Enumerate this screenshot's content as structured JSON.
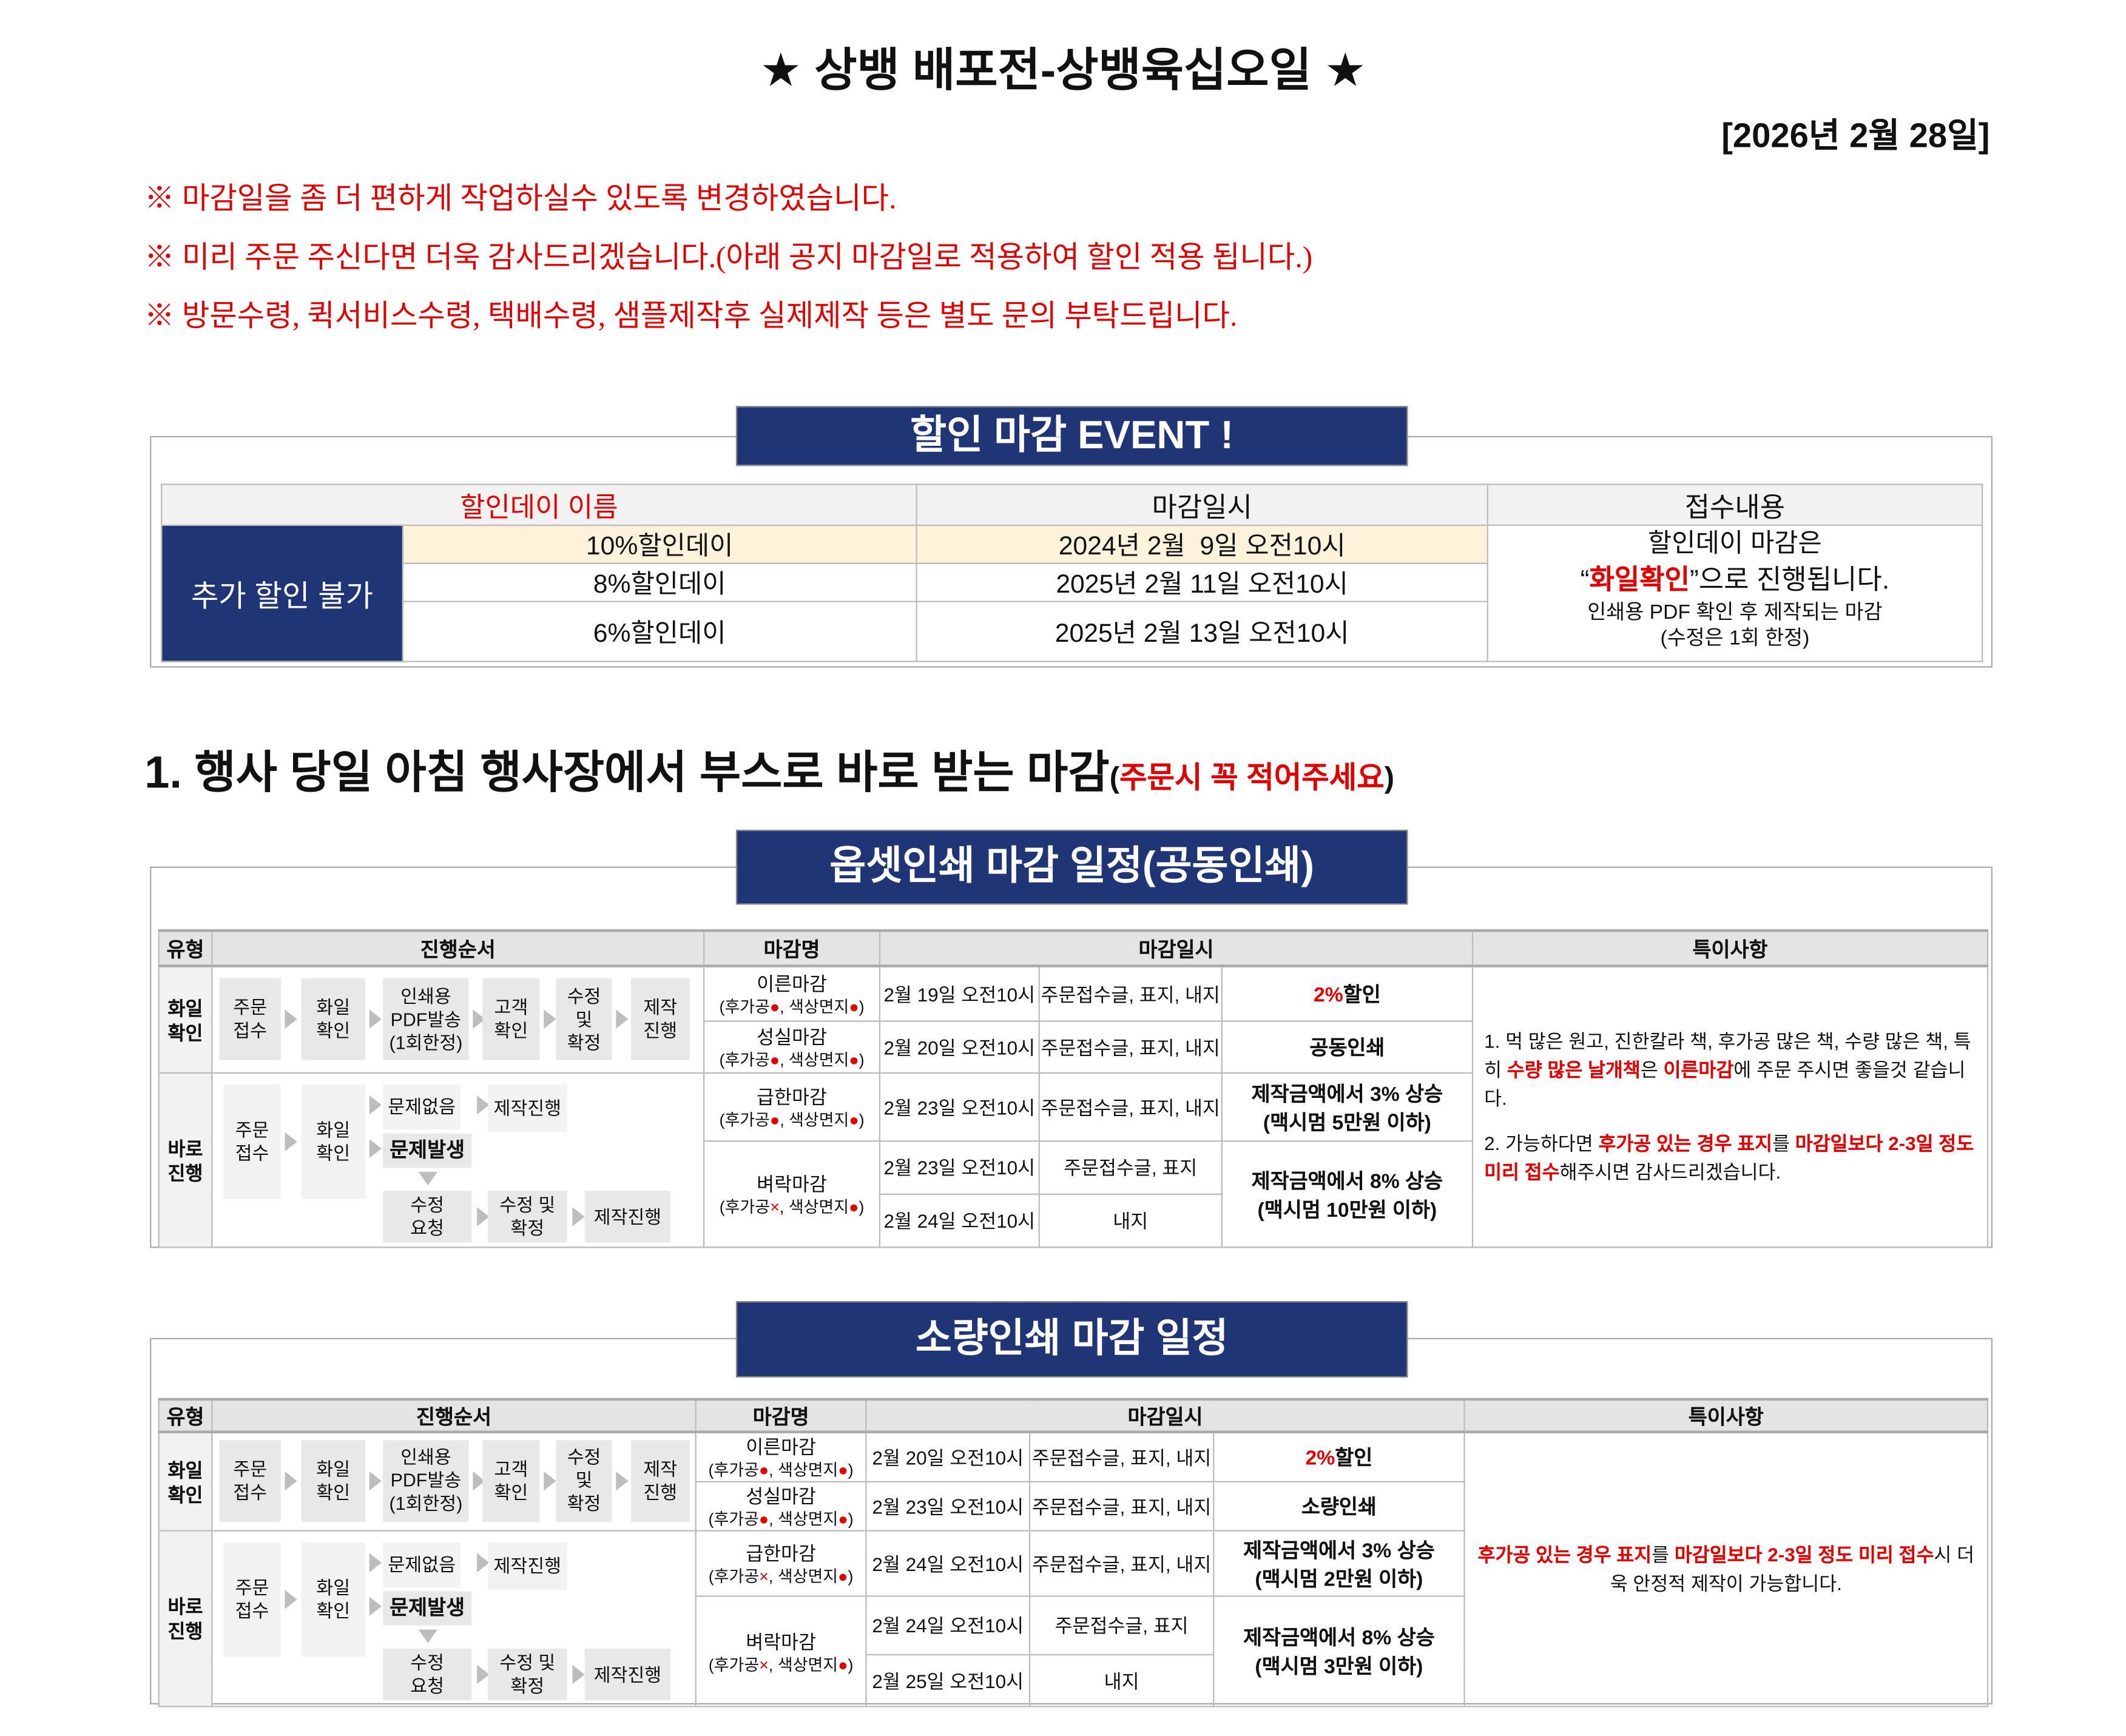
{
  "title": "★ 상뱅 배포전-상뱅육십오일 ★",
  "date": "[2026년 2월 28일]",
  "notices": [
    "※ 마감일을 좀 더 편하게 작업하실수 있도록 변경하였습니다.",
    "※ 미리 주문 주신다면 더욱 감사드리겠습니다.(아래 공지 마감일로 적용하여 할인 적용 됩니다.)",
    "※ 방문수령, 퀵서비스수령, 택배수령, 샘플제작후 실제제작 등은 별도 문의 부탁드립니다."
  ],
  "event": {
    "banner": "할인 마감 EVENT !",
    "headers": [
      "할인데이 이름",
      "마감일시",
      "접수내용"
    ],
    "no_extra": "추가 할인 불가",
    "rows": [
      {
        "name": "10%할인데이",
        "date": "2024년 2월  9일 오전10시"
      },
      {
        "name": "8%할인데이",
        "date": "2025년 2월 11일 오전10시"
      },
      {
        "name": "6%할인데이",
        "date": "2025년 2월 13일 오전10시"
      }
    ],
    "note_line1": "할인데이 마감은",
    "note_line2": [
      [
        "“",
        false
      ],
      [
        "화일확인",
        true
      ],
      [
        "”으로 진행됩니다.",
        false
      ]
    ],
    "note_line3": "인쇄용 PDF 확인 후 제작되는 마감",
    "note_line4": "(수정은 1회 한정)"
  },
  "section1": {
    "heading": "1. 행사 당일 아침 행사장에서 부스로 바로 받는 마감",
    "open": "(",
    "highlight": "주문시 꼭 적어주세요",
    "close": ")"
  },
  "flow": {
    "top": [
      "주문\n접수",
      "화일\n확인",
      "인쇄용\nPDF발송\n(1회한정)",
      "고객\n확인",
      "수정\n및\n확정",
      "제작\n진행"
    ],
    "order": "주문\n접수",
    "file": "화일\n확인",
    "ok": "문제없음",
    "ok_next": "제작진행",
    "problem": "문제발생",
    "fix_req": "수정\n요청",
    "fix_confirm": "수정 및\n확정",
    "produce": "제작진행"
  },
  "headers": [
    "유형",
    "진행순서",
    "마감명",
    "마감일시",
    "특이사항"
  ],
  "types": {
    "file_check": "화일\n확인",
    "direct": "바로\n진행"
  },
  "offset": {
    "banner": "옵셋인쇄 마감 일정(공동인쇄)",
    "rows": [
      {
        "name": "이른마감",
        "sub": [
          [
            "(후가공",
            false
          ],
          [
            "●",
            true
          ],
          [
            ", 색상면지",
            false
          ],
          [
            "●",
            true
          ],
          [
            ")",
            false
          ]
        ],
        "date": "2월 19일 오전10시",
        "items": "주문접수글, 표지, 내지",
        "benefit": [
          [
            "2%",
            true
          ],
          [
            "할인",
            false
          ]
        ]
      },
      {
        "name": "성실마감",
        "sub": [
          [
            "(후가공",
            false
          ],
          [
            "●",
            true
          ],
          [
            ", 색상면지",
            false
          ],
          [
            "●",
            true
          ],
          [
            ")",
            false
          ]
        ],
        "date": "2월 20일 오전10시",
        "items": "주문접수글, 표지, 내지",
        "benefit": [
          [
            "공동인쇄",
            false
          ]
        ]
      },
      {
        "name": "급한마감",
        "sub": [
          [
            "(후가공",
            false
          ],
          [
            "●",
            true
          ],
          [
            ", 색상면지",
            false
          ],
          [
            "●",
            true
          ],
          [
            ")",
            false
          ]
        ],
        "date": "2월 23일 오전10시",
        "items": "주문접수글, 표지, 내지",
        "benefit": [
          [
            "제작금액에서 3% 상승\n(맥시멈 5만원 이하)",
            false
          ]
        ]
      },
      {
        "name": "벼락마감",
        "sub": [
          [
            "(후가공",
            false
          ],
          [
            "×",
            true
          ],
          [
            ", 색상면지",
            false
          ],
          [
            "●",
            true
          ],
          [
            ")",
            false
          ]
        ],
        "date": "2월 23일 오전10시",
        "items": "주문접수글, 표지",
        "date2": "2월 24일 오전10시",
        "items2": "내지",
        "benefit": [
          [
            "제작금액에서 8% 상승\n(맥시멈 10만원 이하)",
            false
          ]
        ]
      }
    ],
    "remark1": [
      [
        "1. 먹 많은 원고, 진한칼라 책, 후가공 많은 책, 수량 많은 책, 특히 ",
        false
      ],
      [
        "수량 많은 날개책",
        true
      ],
      [
        "은 ",
        false
      ],
      [
        "이른마감",
        true
      ],
      [
        "에 주문 주시면 좋을것 같습니다.",
        false
      ]
    ],
    "remark2": [
      [
        "2. 가능하다면 ",
        false
      ],
      [
        "후가공 있는 경우 표지",
        true
      ],
      [
        "를 ",
        false
      ],
      [
        "마감일보다 2-3일 정도 미리 접수",
        true
      ],
      [
        "해주시면 감사드리겠습니다.",
        false
      ]
    ]
  },
  "small": {
    "banner": "소량인쇄 마감 일정",
    "rows": [
      {
        "name": "이른마감",
        "sub": [
          [
            "(후가공",
            false
          ],
          [
            "●",
            true
          ],
          [
            ", 색상면지",
            false
          ],
          [
            "●",
            true
          ],
          [
            ")",
            false
          ]
        ],
        "date": "2월 20일 오전10시",
        "items": "주문접수글, 표지, 내지",
        "benefit": [
          [
            "2%",
            true
          ],
          [
            "할인",
            false
          ]
        ]
      },
      {
        "name": "성실마감",
        "sub": [
          [
            "(후가공",
            false
          ],
          [
            "●",
            true
          ],
          [
            ", 색상면지",
            false
          ],
          [
            "●",
            true
          ],
          [
            ")",
            false
          ]
        ],
        "date": "2월 23일 오전10시",
        "items": "주문접수글, 표지, 내지",
        "benefit": [
          [
            "소량인쇄",
            false
          ]
        ]
      },
      {
        "name": "급한마감",
        "sub": [
          [
            "(후가공",
            false
          ],
          [
            "×",
            true
          ],
          [
            ", 색상면지",
            false
          ],
          [
            "●",
            true
          ],
          [
            ")",
            false
          ]
        ],
        "date": "2월 24일 오전10시",
        "items": "주문접수글, 표지, 내지",
        "benefit": [
          [
            "제작금액에서 3% 상승\n(맥시멈 2만원 이하)",
            false
          ]
        ]
      },
      {
        "name": "벼락마감",
        "sub": [
          [
            "(후가공",
            false
          ],
          [
            "×",
            true
          ],
          [
            ", 색상면지",
            false
          ],
          [
            "●",
            true
          ],
          [
            ")",
            false
          ]
        ],
        "date": "2월 24일 오전10시",
        "items": "주문접수글, 표지",
        "date2": "2월 25일 오전10시",
        "items2": "내지",
        "benefit": [
          [
            "제작금액에서 8% 상승\n(맥시멈 3만원 이하)",
            false
          ]
        ]
      }
    ],
    "remark": [
      [
        "후가공 있는 경우 표지",
        true
      ],
      [
        "를 ",
        false
      ],
      [
        "마감일보다 2-3일 정도 미리 접수",
        true
      ],
      [
        "시 더욱 안정적 제작이 가능합니다.",
        false
      ]
    ]
  },
  "colors": {
    "accent_red": "#e00000",
    "banner_blue": "#1f3576",
    "highlight_yellow": "#fcf3da",
    "header_grey": "#e4e4e4"
  }
}
